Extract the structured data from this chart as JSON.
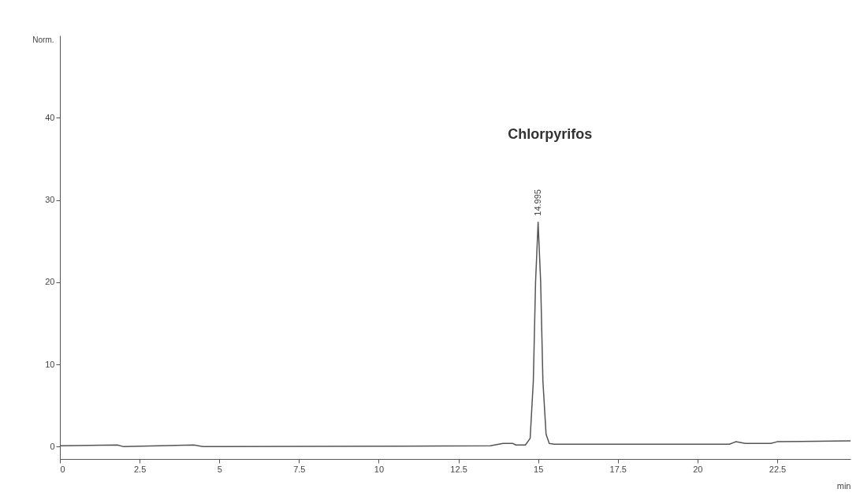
{
  "chart_data": {
    "type": "line",
    "xlabel": "min",
    "ylabel": "Norm.",
    "x": [
      0,
      1.8,
      2,
      4.2,
      4.5,
      5,
      13.5,
      13.9,
      14.2,
      14.3,
      14.6,
      14.75,
      14.85,
      14.92,
      15.0,
      15.08,
      15.15,
      15.25,
      15.35,
      15.5,
      21,
      21.2,
      21.5,
      22.3,
      22.5,
      24.8
    ],
    "series": [
      {
        "color": "#555555",
        "values": [
          0.1,
          0.2,
          0,
          0.2,
          0,
          0,
          0.1,
          0.4,
          0.4,
          0.2,
          0.2,
          1,
          8,
          20,
          27.3,
          20,
          8,
          1.5,
          0.4,
          0.3,
          0.3,
          0.6,
          0.4,
          0.4,
          0.6,
          0.7
        ]
      }
    ],
    "annotations": [
      "Chlorpyrifos",
      {
        "text": "14.995",
        "x": 15,
        "y": 27.3
      }
    ],
    "xlim": [
      0,
      24.8
    ],
    "xticks": [
      0,
      2.5,
      5,
      7.5,
      10,
      12.5,
      15,
      17.5,
      20,
      22.5
    ],
    "ylim": [
      -1.5,
      50
    ],
    "yticks": [
      0,
      10,
      20,
      30,
      40
    ],
    "grid": false,
    "legend": false,
    "marker": "none",
    "line_style": "solid"
  }
}
